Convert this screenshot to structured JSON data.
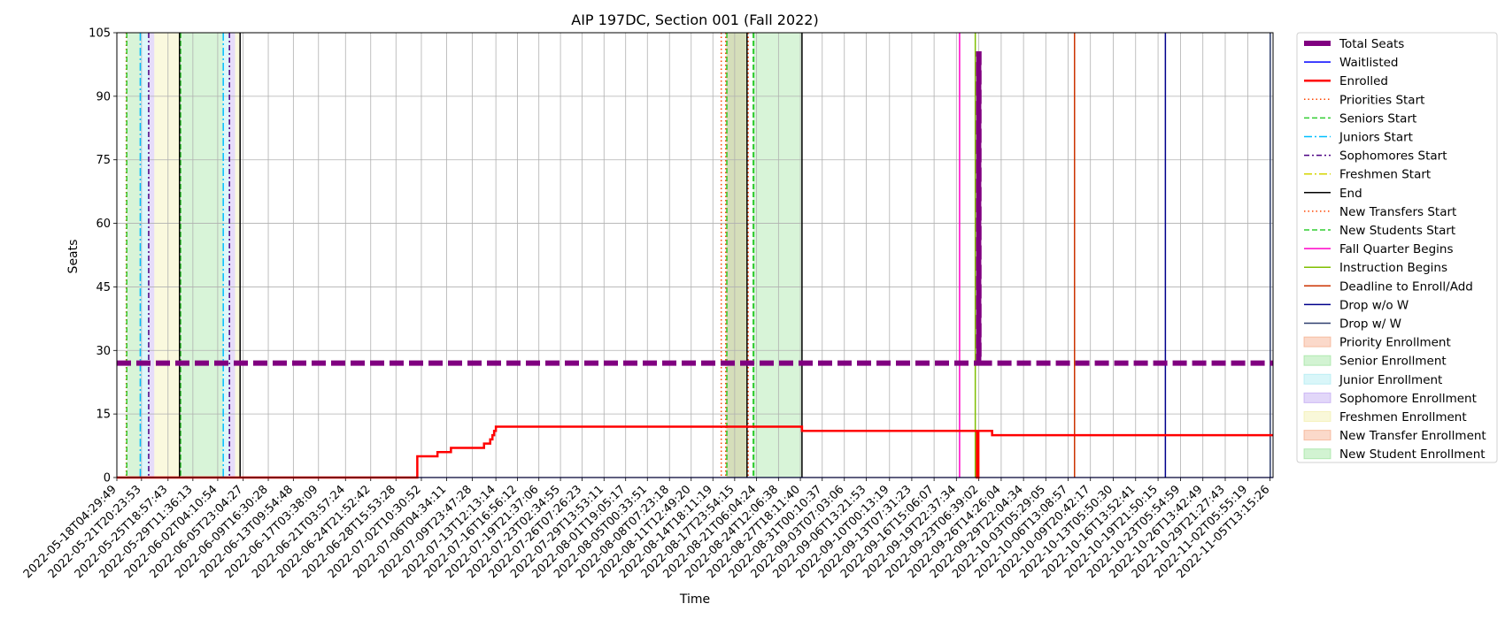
{
  "chart_data": {
    "type": "line",
    "title": "AIP 197DC, Section 001 (Fall 2022)",
    "xlabel": "Time",
    "ylabel": "Seats",
    "x_range": [
      "2022-05-18T04:29:49",
      "2022-11-06T00:00:00"
    ],
    "ylim": [
      0,
      105
    ],
    "y_ticks": [
      0,
      15,
      30,
      45,
      60,
      75,
      90,
      105
    ],
    "grid": true,
    "legend_placement": "outside-right",
    "x_tick_labels": [
      "2022-05-18T04:29:49",
      "2022-05-21T20:23:53",
      "2022-05-25T18:57:43",
      "2022-05-29T11:36:13",
      "2022-06-02T04:10:54",
      "2022-06-05T23:04:27",
      "2022-06-09T16:30:28",
      "2022-06-13T09:54:48",
      "2022-06-17T03:38:09",
      "2022-06-21T03:57:24",
      "2022-06-24T21:52:42",
      "2022-06-28T15:53:28",
      "2022-07-02T10:30:52",
      "2022-07-06T04:34:11",
      "2022-07-09T23:47:28",
      "2022-07-13T12:13:14",
      "2022-07-16T16:56:12",
      "2022-07-19T21:37:06",
      "2022-07-23T02:34:55",
      "2022-07-26T07:26:23",
      "2022-07-29T13:53:11",
      "2022-08-01T19:05:17",
      "2022-08-05T00:33:51",
      "2022-08-08T07:23:18",
      "2022-08-11T12:49:20",
      "2022-08-14T18:11:19",
      "2022-08-17T23:54:15",
      "2022-08-21T06:04:24",
      "2022-08-24T12:06:38",
      "2022-08-27T18:11:40",
      "2022-08-31T00:10:37",
      "2022-09-03T07:03:06",
      "2022-09-06T13:21:53",
      "2022-09-10T00:13:19",
      "2022-09-13T07:31:23",
      "2022-09-16T15:06:07",
      "2022-09-19T22:37:34",
      "2022-09-23T06:39:02",
      "2022-09-26T14:26:04",
      "2022-09-29T22:04:34",
      "2022-10-03T05:29:05",
      "2022-10-06T13:08:57",
      "2022-10-09T20:42:17",
      "2022-10-13T05:50:30",
      "2022-10-16T13:52:41",
      "2022-10-19T21:50:15",
      "2022-10-23T05:54:59",
      "2022-10-26T13:42:49",
      "2022-10-29T21:27:43",
      "2022-11-02T05:55:19",
      "2022-11-05T13:15:26"
    ],
    "series": [
      {
        "name": "Total Seats",
        "color": "#800080",
        "style": "thick-dashed",
        "points": [
          {
            "x": "2022-05-18T04:29:49",
            "y": 27
          },
          {
            "x": "2022-09-23T06:00:00",
            "y": 27
          },
          {
            "x": "2022-09-23T06:00:00",
            "y": 100
          },
          {
            "x": "2022-09-23T07:00:00",
            "y": 100
          },
          {
            "x": "2022-09-23T07:00:00",
            "y": 27
          },
          {
            "x": "2022-11-06T00:00:00",
            "y": 27
          }
        ]
      },
      {
        "name": "Waitlisted",
        "color": "#0000ff",
        "style": "solid",
        "points": [
          {
            "x": "2022-05-18T04:29:49",
            "y": 0
          },
          {
            "x": "2022-11-06T00:00:00",
            "y": 0
          }
        ]
      },
      {
        "name": "Enrolled",
        "color": "#ff0000",
        "style": "solid-thick",
        "points": [
          {
            "x": "2022-05-18T04:29:49",
            "y": 0
          },
          {
            "x": "2022-07-01T20:00:00",
            "y": 0
          },
          {
            "x": "2022-07-01T20:00:00",
            "y": 5
          },
          {
            "x": "2022-07-04T20:00:00",
            "y": 5
          },
          {
            "x": "2022-07-04T20:00:00",
            "y": 6
          },
          {
            "x": "2022-07-06T20:00:00",
            "y": 6
          },
          {
            "x": "2022-07-06T20:00:00",
            "y": 7
          },
          {
            "x": "2022-07-11T18:00:00",
            "y": 7
          },
          {
            "x": "2022-07-11T18:00:00",
            "y": 8
          },
          {
            "x": "2022-07-12T16:00:00",
            "y": 8
          },
          {
            "x": "2022-07-12T16:00:00",
            "y": 9
          },
          {
            "x": "2022-07-13T00:00:00",
            "y": 9
          },
          {
            "x": "2022-07-13T00:00:00",
            "y": 10
          },
          {
            "x": "2022-07-13T06:00:00",
            "y": 10
          },
          {
            "x": "2022-07-13T06:00:00",
            "y": 11
          },
          {
            "x": "2022-07-13T12:13:14",
            "y": 11
          },
          {
            "x": "2022-07-13T12:13:14",
            "y": 12
          },
          {
            "x": "2022-08-28T00:00:00",
            "y": 12
          },
          {
            "x": "2022-08-28T00:00:00",
            "y": 11
          },
          {
            "x": "2022-09-23T00:00:00",
            "y": 11
          },
          {
            "x": "2022-09-23T00:00:00",
            "y": 0
          },
          {
            "x": "2022-09-23T05:00:00",
            "y": 0
          },
          {
            "x": "2022-09-23T05:00:00",
            "y": 11
          },
          {
            "x": "2022-09-25T06:00:00",
            "y": 11
          },
          {
            "x": "2022-09-25T06:00:00",
            "y": 10
          },
          {
            "x": "2022-11-06T00:00:00",
            "y": 10
          }
        ]
      }
    ],
    "vertical_lines": [
      {
        "name": "Priorities Start",
        "color": "#ff4500",
        "style": "dotted",
        "x": [
          "2022-05-19T14:00:00",
          "2022-08-16T00:00:00",
          "2022-08-20T00:00:00"
        ]
      },
      {
        "name": "Seniors Start",
        "color": "#32cd32",
        "style": "dashed",
        "x": [
          "2022-05-19T16:00:00",
          "2022-05-27T16:00:00",
          "2022-08-20T18:00:00"
        ]
      },
      {
        "name": "Juniors Start",
        "color": "#00bfff",
        "style": "dashdot",
        "x": [
          "2022-05-21T16:00:00",
          "2022-06-03T00:00:00"
        ]
      },
      {
        "name": "Sophomores Start",
        "color": "#4b0082",
        "style": "dashdot-dense",
        "x": [
          "2022-05-22T22:00:00",
          "2022-06-03T22:00:00"
        ]
      },
      {
        "name": "Freshmen Start",
        "color": "#d4d400",
        "style": "dashdot",
        "x": []
      },
      {
        "name": "End",
        "color": "#000000",
        "style": "solid",
        "x": [
          "2022-05-27T12:00:00",
          "2022-06-05T12:00:00",
          "2022-08-19T20:00:00",
          "2022-08-28T00:00:00"
        ]
      },
      {
        "name": "New Transfers Start",
        "color": "#ff4500",
        "style": "dotted",
        "x": [
          "2022-08-16T16:00:00"
        ]
      },
      {
        "name": "New Students Start",
        "color": "#32cd32",
        "style": "dashed",
        "x": [
          "2022-08-16T20:00:00",
          "2022-08-20T20:00:00"
        ]
      },
      {
        "name": "Fall Quarter Begins",
        "color": "#ff00c8",
        "style": "solid",
        "x": [
          "2022-09-20T10:00:00"
        ]
      },
      {
        "name": "Instruction Begins",
        "color": "#7fbf00",
        "style": "solid",
        "x": [
          "2022-09-22T18:00:00"
        ]
      },
      {
        "name": "Deadline to Enroll/Add",
        "color": "#cc3300",
        "style": "solid",
        "x": [
          "2022-10-07T12:00:00"
        ]
      },
      {
        "name": "Drop w/o W",
        "color": "#00008b",
        "style": "solid",
        "x": [
          "2022-10-21T00:00:00"
        ]
      },
      {
        "name": "Drop w/ W",
        "color": "#2f3f6f",
        "style": "solid",
        "x": [
          "2022-11-05T14:00:00"
        ]
      }
    ],
    "spans": [
      {
        "name": "Priority Enrollment",
        "color": "#f4a07a",
        "x": []
      },
      {
        "name": "Senior Enrollment",
        "color": "#8fe08f",
        "spans": [
          [
            "2022-05-19T16:00:00",
            "2022-05-21T16:00:00"
          ],
          [
            "2022-05-27T16:00:00",
            "2022-06-03T00:00:00"
          ],
          [
            "2022-08-20T18:00:00",
            "2022-08-28T00:00:00"
          ]
        ]
      },
      {
        "name": "Junior Enrollment",
        "color": "#9fe8f0",
        "spans": [
          [
            "2022-05-21T16:00:00",
            "2022-05-22T22:00:00"
          ],
          [
            "2022-06-03T00:00:00",
            "2022-06-03T22:00:00"
          ]
        ]
      },
      {
        "name": "Sophomore Enrollment",
        "color": "#b79af0",
        "spans": [
          [
            "2022-05-22T22:00:00",
            "2022-05-23T18:00:00"
          ],
          [
            "2022-06-03T22:00:00",
            "2022-06-04T18:00:00"
          ]
        ]
      },
      {
        "name": "Freshmen Enrollment",
        "color": "#f0eda0",
        "spans": [
          [
            "2022-05-23T18:00:00",
            "2022-05-27T12:00:00"
          ],
          [
            "2022-06-04T18:00:00",
            "2022-06-05T12:00:00"
          ]
        ]
      },
      {
        "name": "New Transfer Enrollment",
        "color": "#f4a07a",
        "spans": [
          [
            "2022-08-16T16:00:00",
            "2022-08-19T20:00:00"
          ]
        ]
      },
      {
        "name": "New Student Enrollment",
        "color": "#8fe08f",
        "spans": [
          [
            "2022-08-16T20:00:00",
            "2022-08-19T20:00:00"
          ]
        ]
      }
    ],
    "legend": [
      {
        "label": "Total Seats",
        "color": "#800080",
        "kind": "line",
        "style": "thick"
      },
      {
        "label": "Waitlisted",
        "color": "#0000ff",
        "kind": "line",
        "style": "solid"
      },
      {
        "label": "Enrolled",
        "color": "#ff0000",
        "kind": "line",
        "style": "solid-thick"
      },
      {
        "label": "Priorities Start",
        "color": "#ff4500",
        "kind": "line",
        "style": "dotted"
      },
      {
        "label": "Seniors Start",
        "color": "#32cd32",
        "kind": "line",
        "style": "dashed"
      },
      {
        "label": "Juniors Start",
        "color": "#00bfff",
        "kind": "line",
        "style": "dashdot"
      },
      {
        "label": "Sophomores Start",
        "color": "#4b0082",
        "kind": "line",
        "style": "dashdot-dense"
      },
      {
        "label": "Freshmen Start",
        "color": "#d4d400",
        "kind": "line",
        "style": "dashdot"
      },
      {
        "label": "End",
        "color": "#000000",
        "kind": "line",
        "style": "solid"
      },
      {
        "label": "New Transfers Start",
        "color": "#ff4500",
        "kind": "line",
        "style": "dotted"
      },
      {
        "label": "New Students Start",
        "color": "#32cd32",
        "kind": "line",
        "style": "dashed"
      },
      {
        "label": "Fall Quarter Begins",
        "color": "#ff00c8",
        "kind": "line",
        "style": "solid"
      },
      {
        "label": "Instruction Begins",
        "color": "#7fbf00",
        "kind": "line",
        "style": "solid"
      },
      {
        "label": "Deadline to Enroll/Add",
        "color": "#cc3300",
        "kind": "line",
        "style": "solid"
      },
      {
        "label": "Drop w/o W",
        "color": "#00008b",
        "kind": "line",
        "style": "solid"
      },
      {
        "label": "Drop w/ W",
        "color": "#2f3f6f",
        "kind": "line",
        "style": "solid"
      },
      {
        "label": "Priority Enrollment",
        "color": "#f4a07a",
        "kind": "patch"
      },
      {
        "label": "Senior Enrollment",
        "color": "#8fe08f",
        "kind": "patch"
      },
      {
        "label": "Junior Enrollment",
        "color": "#9fe8f0",
        "kind": "patch"
      },
      {
        "label": "Sophomore Enrollment",
        "color": "#b79af0",
        "kind": "patch"
      },
      {
        "label": "Freshmen Enrollment",
        "color": "#f0eda0",
        "kind": "patch"
      },
      {
        "label": "New Transfer Enrollment",
        "color": "#f4a07a",
        "kind": "patch"
      },
      {
        "label": "New Student Enrollment",
        "color": "#8fe08f",
        "kind": "patch"
      }
    ]
  }
}
